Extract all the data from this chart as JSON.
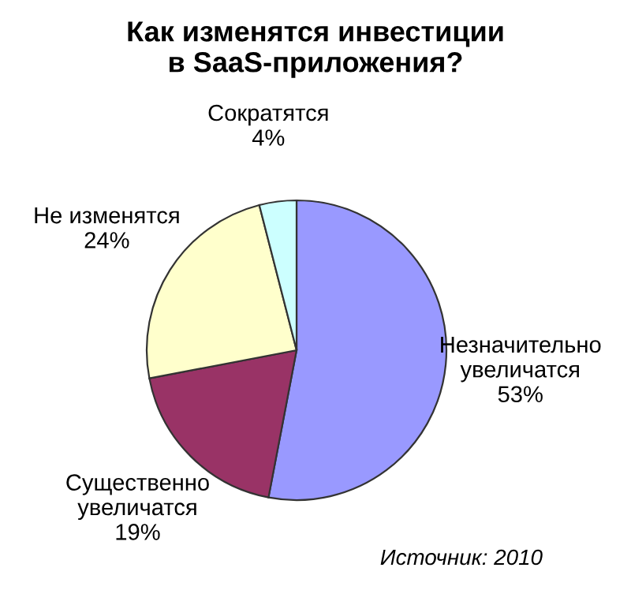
{
  "chart_data": {
    "type": "pie",
    "title": "Как изменятся инвестиции\nв SaaS-приложения?",
    "categories": [
      "Незначительно\nувеличатся",
      "Существенно\nувеличатся",
      "Не изменятся",
      "Сократятся"
    ],
    "values": [
      53,
      19,
      24,
      4
    ],
    "value_labels": [
      "53%",
      "19%",
      "24%",
      "4%"
    ],
    "colors": [
      "#9999ff",
      "#993366",
      "#ffffcc",
      "#ccffff"
    ],
    "annotations": [
      "Источник: 2010"
    ]
  }
}
